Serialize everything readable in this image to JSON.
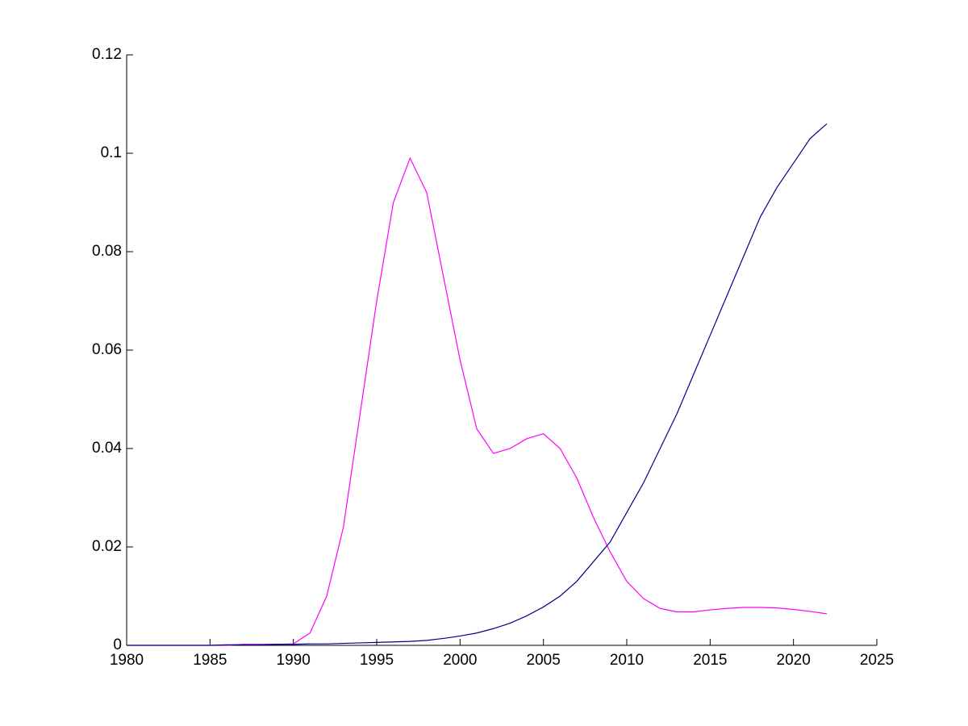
{
  "chart_data": {
    "type": "line",
    "x": [
      1980,
      1981,
      1982,
      1983,
      1984,
      1985,
      1986,
      1987,
      1988,
      1989,
      1990,
      1991,
      1992,
      1993,
      1994,
      1995,
      1996,
      1997,
      1998,
      1999,
      2000,
      2001,
      2002,
      2003,
      2004,
      2005,
      2006,
      2007,
      2008,
      2009,
      2010,
      2011,
      2012,
      2013,
      2014,
      2015,
      2016,
      2017,
      2018,
      2019,
      2020,
      2021,
      2022
    ],
    "series": [
      {
        "color": "#ff00ff",
        "values": [
          0,
          0,
          0,
          0,
          0,
          0,
          0,
          0.0002,
          0.0002,
          0.0002,
          0.0003,
          0.0025,
          0.01,
          0.024,
          0.047,
          0.07,
          0.09,
          0.099,
          0.092,
          0.075,
          0.058,
          0.044,
          0.039,
          0.04,
          0.042,
          0.043,
          0.04,
          0.034,
          0.026,
          0.019,
          0.013,
          0.0095,
          0.0075,
          0.0068,
          0.0068,
          0.0072,
          0.0075,
          0.0077,
          0.0077,
          0.0076,
          0.0073,
          0.0069,
          0.0064
        ]
      },
      {
        "color": "#000090",
        "values": [
          0,
          0,
          0,
          0,
          0,
          0,
          0.0001,
          0.0001,
          0.0001,
          0.0002,
          0.0002,
          0.0003,
          0.0003,
          0.0004,
          0.0005,
          0.0006,
          0.0007,
          0.0008,
          0.001,
          0.0014,
          0.0019,
          0.0025,
          0.0034,
          0.0045,
          0.006,
          0.0078,
          0.01,
          0.013,
          0.017,
          0.021,
          0.027,
          0.033,
          0.04,
          0.047,
          0.055,
          0.063,
          0.071,
          0.079,
          0.087,
          0.093,
          0.098,
          0.103,
          0.106
        ]
      }
    ],
    "xlim": [
      1980,
      2025
    ],
    "xticks": [
      1980,
      1985,
      1990,
      1995,
      2000,
      2005,
      2010,
      2015,
      2020,
      2025
    ],
    "ylim": [
      0,
      0.12
    ],
    "yticks": [
      0,
      0.02,
      0.04,
      0.06,
      0.08,
      0.1,
      0.12
    ],
    "grid": false
  }
}
